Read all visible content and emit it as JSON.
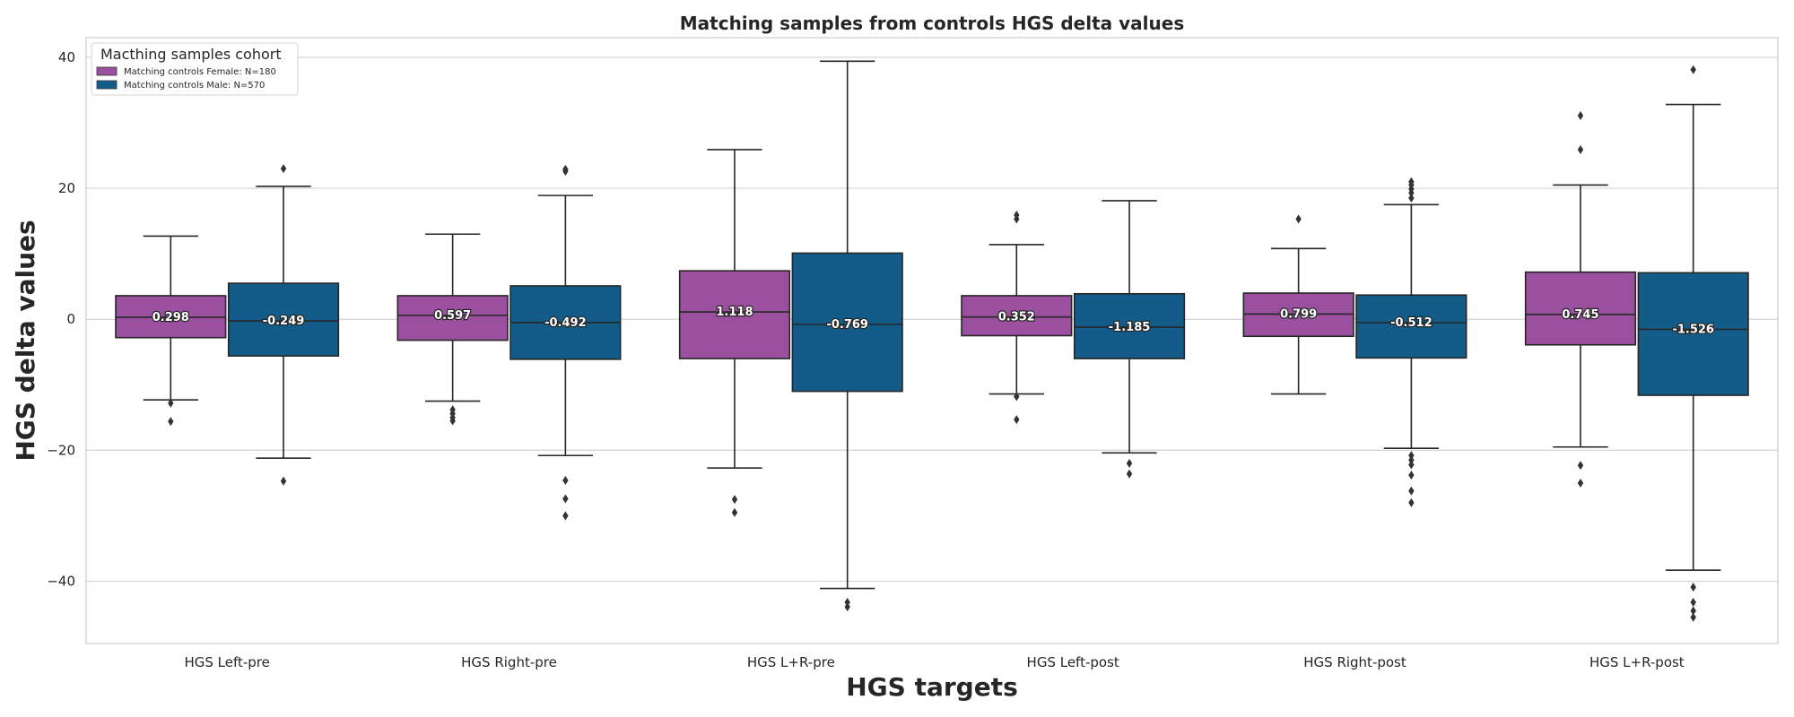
{
  "chart_data": {
    "type": "box",
    "title": "Matching samples from controls HGS delta values",
    "xlabel": "HGS targets",
    "ylabel": "HGS delta values",
    "ylim": [
      -49.5,
      43
    ],
    "yticks": [
      40,
      20,
      0,
      -20,
      -40
    ],
    "ytick_labels": [
      "40",
      "20",
      "0",
      "−20",
      "−40"
    ],
    "grid": true,
    "legend": {
      "title": "Macthing samples cohort",
      "position": "top-left"
    },
    "categories": [
      "HGS Left-pre",
      "HGS Right-pre",
      "HGS L+R-pre",
      "HGS Left-post",
      "HGS Right-post",
      "HGS L+R-post"
    ],
    "series": [
      {
        "name": "Matching controls Female: N=180",
        "color": "#9b4f9f",
        "boxes": [
          {
            "q1": -2.8,
            "median": 0.298,
            "q3": 3.6,
            "whisker_low": -12.3,
            "whisker_high": 12.7,
            "outliers": [
              -12.8,
              -15.6
            ],
            "label": "0.298"
          },
          {
            "q1": -3.2,
            "median": 0.597,
            "q3": 3.6,
            "whisker_low": -12.5,
            "whisker_high": 13.0,
            "outliers": [
              -13.8,
              -14.4,
              -15.0,
              -15.5
            ],
            "label": "0.597"
          },
          {
            "q1": -6.0,
            "median": 1.118,
            "q3": 7.4,
            "whisker_low": -22.7,
            "whisker_high": 25.9,
            "outliers": [
              -27.5,
              -29.5
            ],
            "label": "1.118"
          },
          {
            "q1": -2.5,
            "median": 0.352,
            "q3": 3.6,
            "whisker_low": -11.4,
            "whisker_high": 11.4,
            "outliers": [
              -11.8,
              -15.3,
              15.3,
              15.9
            ],
            "label": "0.352"
          },
          {
            "q1": -2.6,
            "median": 0.799,
            "q3": 4.0,
            "whisker_low": -11.4,
            "whisker_high": 10.8,
            "outliers": [
              15.3
            ],
            "label": "0.799"
          },
          {
            "q1": -3.9,
            "median": 0.745,
            "q3": 7.2,
            "whisker_low": -19.5,
            "whisker_high": 20.5,
            "outliers": [
              -22.3,
              -25.0,
              25.9,
              31.1
            ],
            "label": "0.745"
          }
        ]
      },
      {
        "name": "Matching controls Male: N=570",
        "color": "#135b89",
        "boxes": [
          {
            "q1": -5.6,
            "median": -0.249,
            "q3": 5.5,
            "whisker_low": -21.2,
            "whisker_high": 20.3,
            "outliers": [
              -24.7,
              23.0
            ],
            "label": "-0.249"
          },
          {
            "q1": -6.1,
            "median": -0.492,
            "q3": 5.1,
            "whisker_low": -20.8,
            "whisker_high": 18.9,
            "outliers": [
              -24.6,
              -27.4,
              -30.0,
              22.6,
              22.9
            ],
            "label": "-0.492"
          },
          {
            "q1": -11.0,
            "median": -0.769,
            "q3": 10.1,
            "whisker_low": -41.1,
            "whisker_high": 39.4,
            "outliers": [
              -43.2,
              -43.9
            ],
            "label": "-0.769"
          },
          {
            "q1": -6.0,
            "median": -1.185,
            "q3": 3.9,
            "whisker_low": -20.4,
            "whisker_high": 18.1,
            "outliers": [
              -22.0,
              -23.6
            ],
            "label": "-1.185"
          },
          {
            "q1": -5.9,
            "median": -0.512,
            "q3": 3.7,
            "whisker_low": -19.7,
            "whisker_high": 17.5,
            "outliers": [
              -20.8,
              -21.5,
              -22.2,
              -23.8,
              -26.2,
              -28.0,
              18.5,
              19.3,
              19.9,
              20.5,
              21.0
            ],
            "label": "-0.512"
          },
          {
            "q1": -11.6,
            "median": -1.526,
            "q3": 7.1,
            "whisker_low": -38.3,
            "whisker_high": 32.8,
            "outliers": [
              -40.9,
              -43.2,
              -44.5,
              -45.5,
              38.1
            ],
            "label": "-1.526"
          }
        ]
      }
    ]
  }
}
